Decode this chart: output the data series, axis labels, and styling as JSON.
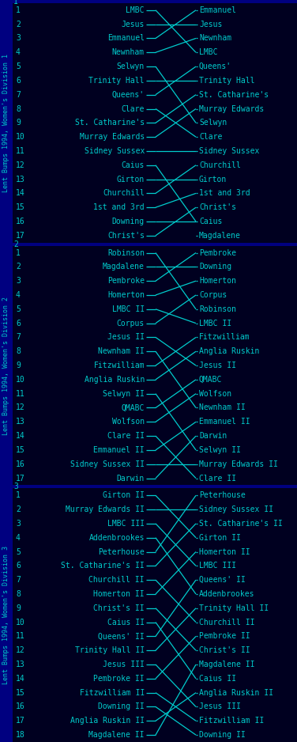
{
  "bg_color": "#000020",
  "sidebar_color": "#000080",
  "line_color": "#00cccc",
  "text_color": "#00cccc",
  "fig_width": 3.76,
  "fig_height": 9.38,
  "dpi": 100,
  "divisions": [
    {
      "label": "Lent Bumps 1994, Women's Division 1",
      "div_num": "1",
      "rows": [
        {
          "num": 1,
          "start": "LMBC",
          "end": "Emmanuel"
        },
        {
          "num": 2,
          "start": "Jesus",
          "end": "Jesus"
        },
        {
          "num": 3,
          "start": "Emmanuel",
          "end": "Newnham"
        },
        {
          "num": 4,
          "start": "Newnham",
          "end": "LMBC"
        },
        {
          "num": 5,
          "start": "Selwyn",
          "end": "Queens'"
        },
        {
          "num": 6,
          "start": "Trinity Hall",
          "end": "Trinity Hall"
        },
        {
          "num": 7,
          "start": "Queens'",
          "end": "St. Catharine's"
        },
        {
          "num": 8,
          "start": "Clare",
          "end": "Murray Edwards"
        },
        {
          "num": 9,
          "start": "St. Catharine's",
          "end": "Selwyn"
        },
        {
          "num": 10,
          "start": "Murray Edwards",
          "end": "Clare"
        },
        {
          "num": 11,
          "start": "Sidney Sussex",
          "end": "Sidney Sussex"
        },
        {
          "num": 12,
          "start": "Caius",
          "end": "Churchill"
        },
        {
          "num": 13,
          "start": "Girton",
          "end": "Girton"
        },
        {
          "num": 14,
          "start": "Churchill",
          "end": "1st and 3rd"
        },
        {
          "num": 15,
          "start": "1st and 3rd",
          "end": "Christ's"
        },
        {
          "num": 16,
          "start": "Downing",
          "end": "Caius"
        },
        {
          "num": 17,
          "start": "Christ's",
          "end": "Magdalene"
        }
      ]
    },
    {
      "label": "Lent Bumps 1994, Women's Division 2",
      "div_num": "2",
      "rows": [
        {
          "num": 1,
          "start": "Robinson",
          "end": "Pembroke"
        },
        {
          "num": 2,
          "start": "Magdalene",
          "end": "Downing"
        },
        {
          "num": 3,
          "start": "Pembroke",
          "end": "Homerton"
        },
        {
          "num": 4,
          "start": "Homerton",
          "end": "Corpus"
        },
        {
          "num": 5,
          "start": "LMBC II",
          "end": "Robinson"
        },
        {
          "num": 6,
          "start": "Corpus",
          "end": "LMBC II"
        },
        {
          "num": 7,
          "start": "Jesus II",
          "end": "Fitzwilliam"
        },
        {
          "num": 8,
          "start": "Newnham II",
          "end": "Anglia Ruskin"
        },
        {
          "num": 9,
          "start": "Fitzwilliam",
          "end": "Jesus II"
        },
        {
          "num": 10,
          "start": "Anglia Ruskin",
          "end": "QMABC"
        },
        {
          "num": 11,
          "start": "Selwyn II",
          "end": "Wolfson"
        },
        {
          "num": 12,
          "start": "QMABC",
          "end": "Newnham II"
        },
        {
          "num": 13,
          "start": "Wolfson",
          "end": "Emmanuel II"
        },
        {
          "num": 14,
          "start": "Clare II",
          "end": "Darwin"
        },
        {
          "num": 15,
          "start": "Emmanuel II",
          "end": "Selwyn II"
        },
        {
          "num": 16,
          "start": "Sidney Sussex II",
          "end": "Murray Edwards II"
        },
        {
          "num": 17,
          "start": "Darwin",
          "end": "Clare II"
        }
      ]
    },
    {
      "label": "Lent Bumps 1994, Women's Division 3",
      "div_num": "3",
      "rows": [
        {
          "num": 1,
          "start": "Girton II",
          "end": "Peterhouse"
        },
        {
          "num": 2,
          "start": "Murray Edwards II",
          "end": "Sidney Sussex II"
        },
        {
          "num": 3,
          "start": "LMBC III",
          "end": "St. Catharine's II"
        },
        {
          "num": 4,
          "start": "Addenbrookes",
          "end": "Girton II"
        },
        {
          "num": 5,
          "start": "Peterhouse",
          "end": "Homerton II"
        },
        {
          "num": 6,
          "start": "St. Catharine's II",
          "end": "LMBC III"
        },
        {
          "num": 7,
          "start": "Churchill II",
          "end": "Queens' II"
        },
        {
          "num": 8,
          "start": "Homerton II",
          "end": "Addenbrookes"
        },
        {
          "num": 9,
          "start": "Christ's II",
          "end": "Trinity Hall II"
        },
        {
          "num": 10,
          "start": "Caius II",
          "end": "Churchill II"
        },
        {
          "num": 11,
          "start": "Queens' II",
          "end": "Pembroke II"
        },
        {
          "num": 12,
          "start": "Trinity Hall II",
          "end": "Christ's II"
        },
        {
          "num": 13,
          "start": "Jesus III",
          "end": "Magdalene II"
        },
        {
          "num": 14,
          "start": "Pembroke II",
          "end": "Caius II"
        },
        {
          "num": 15,
          "start": "Fitzwilliam II",
          "end": "Anglia Ruskin II"
        },
        {
          "num": 16,
          "start": "Downing II",
          "end": "Jesus III"
        },
        {
          "num": 17,
          "start": "Anglia Ruskin II",
          "end": "Fitzwilliam II"
        },
        {
          "num": 18,
          "start": "Magdalene II",
          "end": "Downing II"
        }
      ]
    }
  ]
}
